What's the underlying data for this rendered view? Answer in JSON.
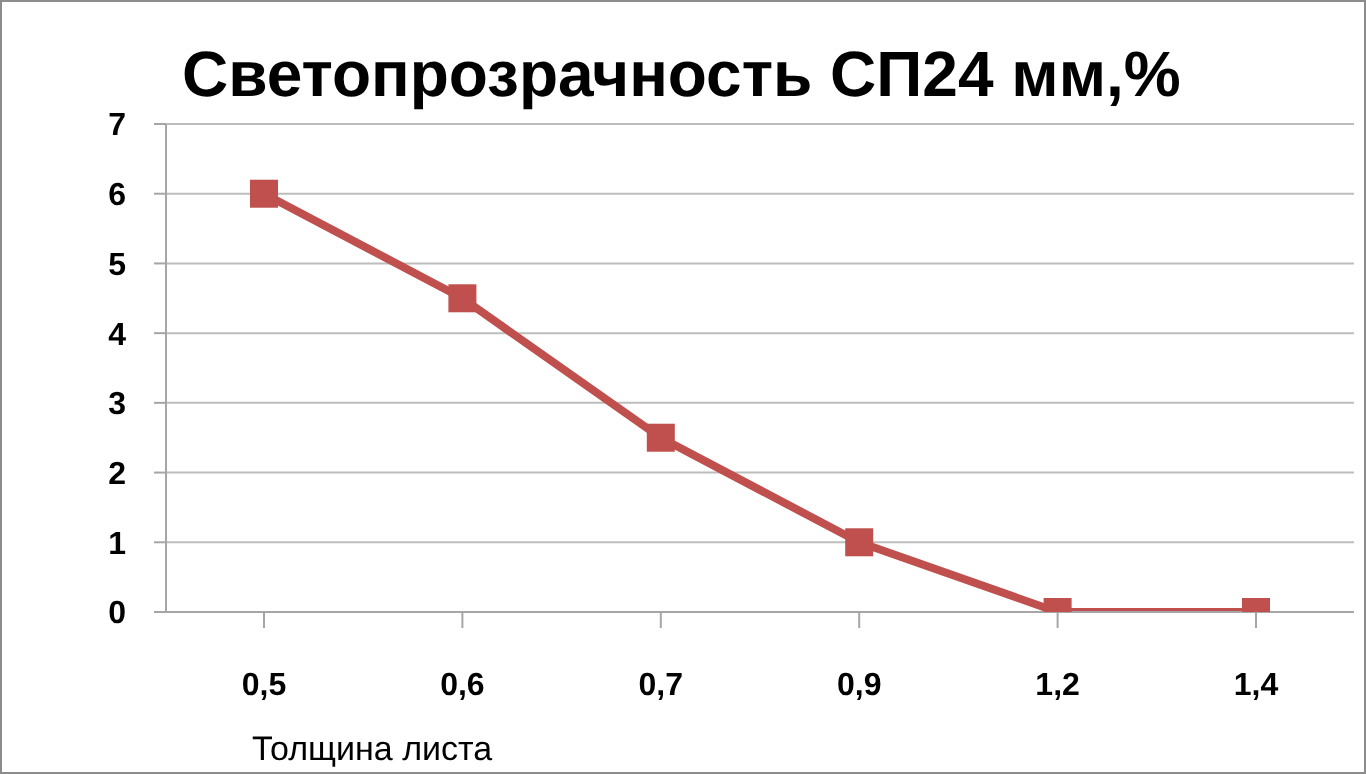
{
  "chart_data": {
    "type": "line",
    "title": "Светопрозрачность СП24 мм,%",
    "xlabel": "Толщина листа",
    "categories": [
      "0,5",
      "0,6",
      "0,7",
      "0,9",
      "1,2",
      "1,4"
    ],
    "series": [
      {
        "color": "#c0504d",
        "values": [
          6,
          4.5,
          2.5,
          1,
          0,
          0
        ]
      }
    ],
    "ylim": [
      0,
      7
    ],
    "yticks": [
      0,
      1,
      2,
      3,
      4,
      5,
      6,
      7
    ],
    "grid": "y",
    "marker": "square",
    "line_style": "solid",
    "legend": false
  }
}
